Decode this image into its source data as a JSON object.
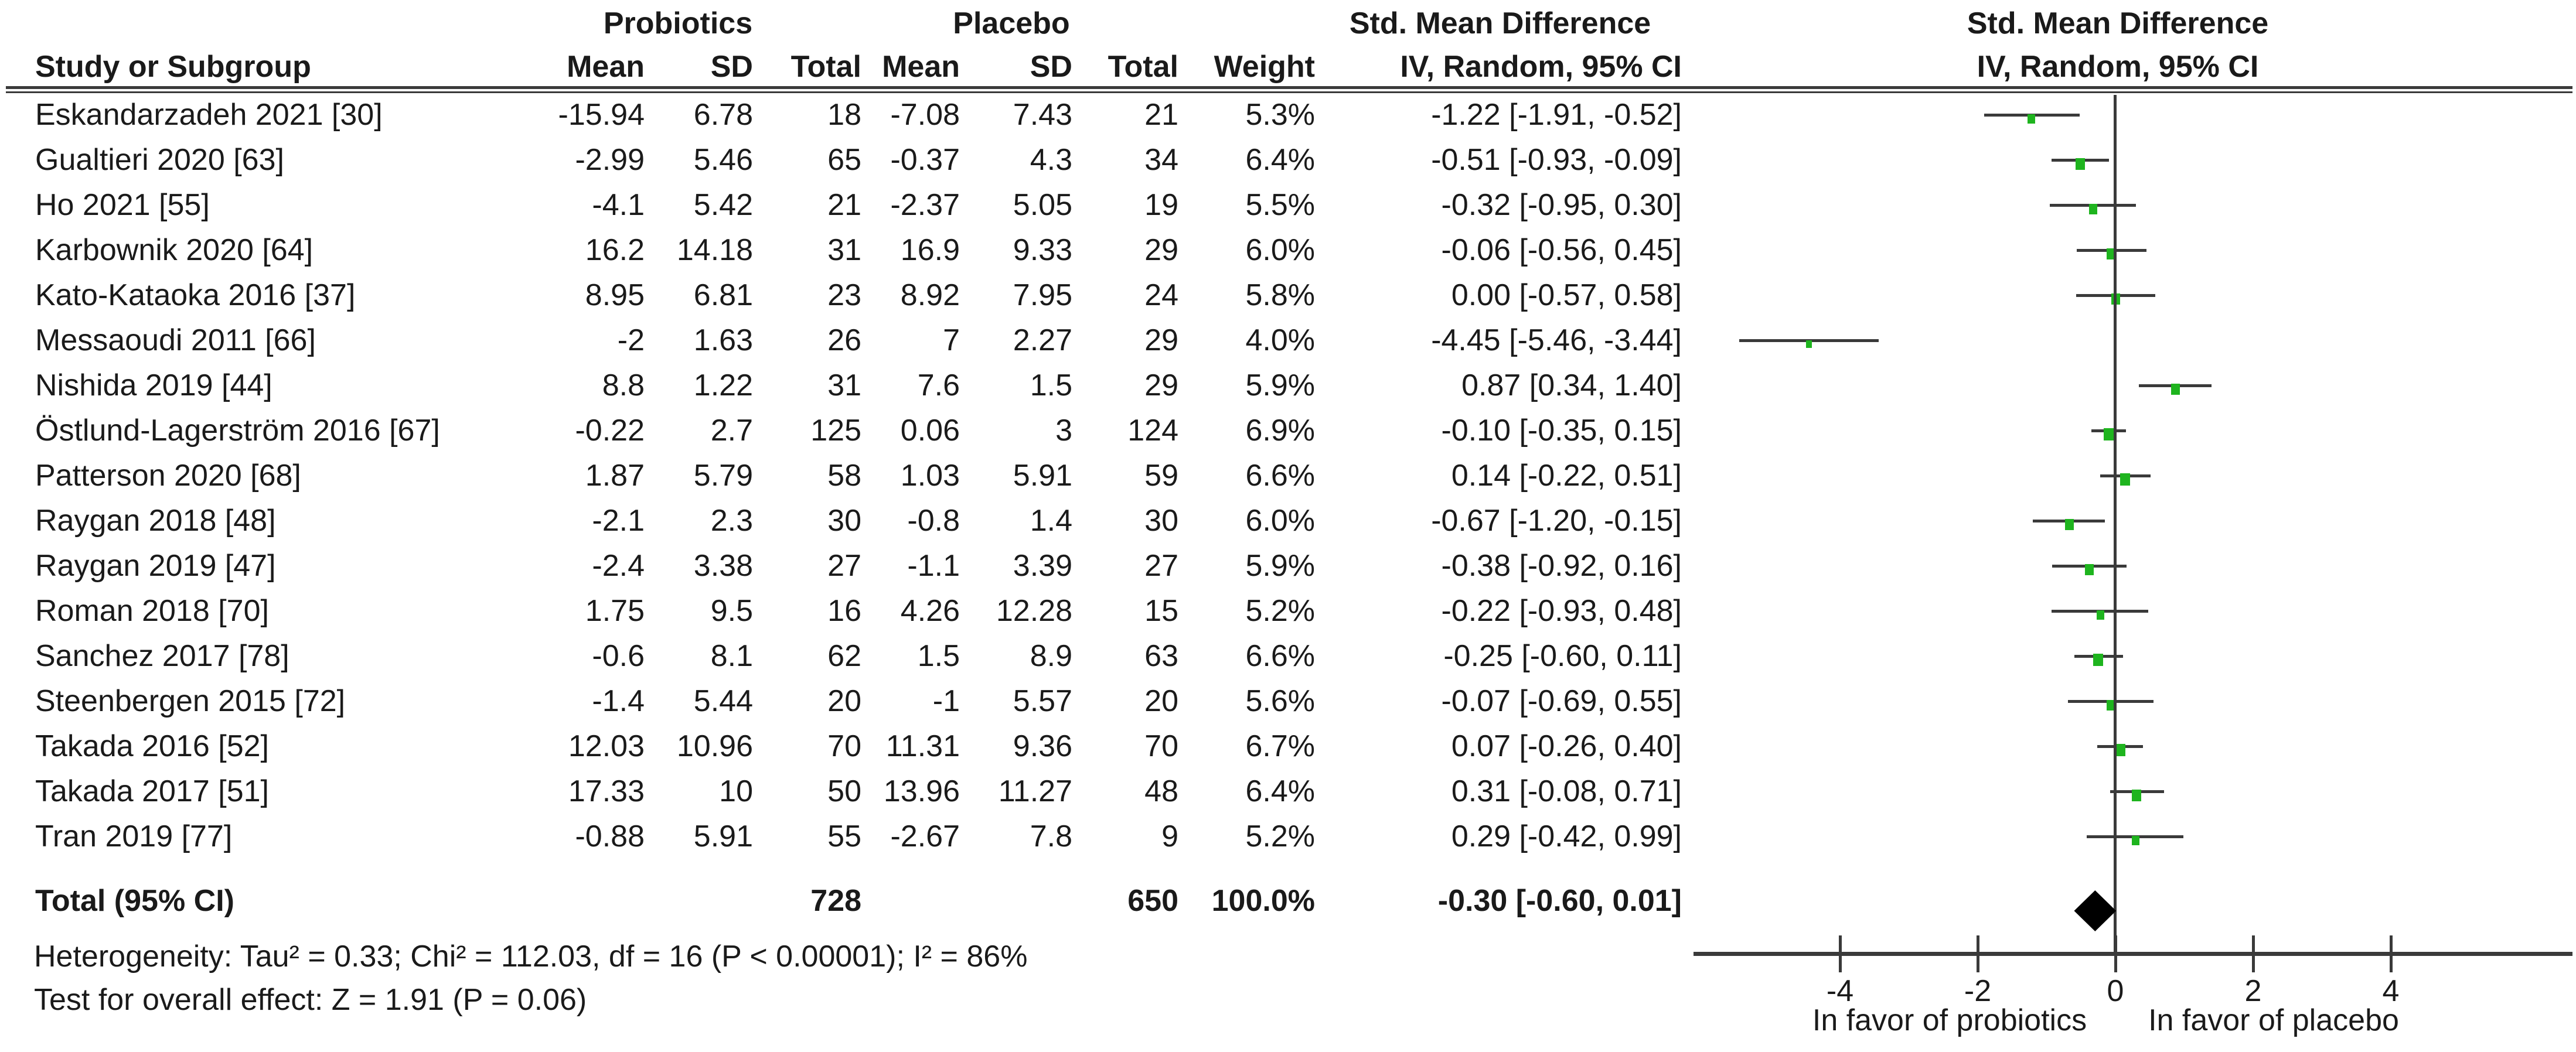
{
  "figure": {
    "headers": {
      "group_probiotics": "Probiotics",
      "group_placebo": "Placebo",
      "group_smd": "Std. Mean Difference",
      "plot_smd": "Std. Mean Difference",
      "study": "Study or Subgroup",
      "mean": "Mean",
      "sd": "SD",
      "total": "Total",
      "weight": "Weight",
      "iv_random": "IV, Random, 95% CI",
      "plot_iv_random": "IV, Random, 95% CI"
    }
  },
  "chart_data": {
    "type": "forest",
    "effect_measure": "Std. Mean Difference",
    "model": "IV, Random, 95% CI",
    "colors": {
      "marker": "#1eb41e",
      "line": "#3a3a3a",
      "diamond": "#000000"
    },
    "axis": {
      "ticks": [
        -4,
        -2,
        0,
        2,
        4
      ],
      "tick_labels": [
        "-4",
        "-2",
        "0",
        "2",
        "4"
      ],
      "xmin": -6.1,
      "xmax": 6.6,
      "left_label": "In favor of probiotics",
      "right_label": "In favor of placebo"
    },
    "studies": [
      {
        "name": "Eskandarzadeh 2021 [30]",
        "mean1": "-15.94",
        "sd1": "6.78",
        "total1": "18",
        "mean2": "-7.08",
        "sd2": "7.43",
        "total2": "21",
        "weight": "5.3%",
        "ci": "-1.22 [-1.91, -0.52]",
        "est": -1.22,
        "lo": -1.91,
        "hi": -0.52
      },
      {
        "name": "Gualtieri 2020 [63]",
        "mean1": "-2.99",
        "sd1": "5.46",
        "total1": "65",
        "mean2": "-0.37",
        "sd2": "4.3",
        "total2": "34",
        "weight": "6.4%",
        "ci": "-0.51 [-0.93, -0.09]",
        "est": -0.51,
        "lo": -0.93,
        "hi": -0.09
      },
      {
        "name": "Ho 2021 [55]",
        "mean1": "-4.1",
        "sd1": "5.42",
        "total1": "21",
        "mean2": "-2.37",
        "sd2": "5.05",
        "total2": "19",
        "weight": "5.5%",
        "ci": "-0.32 [-0.95, 0.30]",
        "est": -0.32,
        "lo": -0.95,
        "hi": 0.3
      },
      {
        "name": "Karbownik 2020 [64]",
        "mean1": "16.2",
        "sd1": "14.18",
        "total1": "31",
        "mean2": "16.9",
        "sd2": "9.33",
        "total2": "29",
        "weight": "6.0%",
        "ci": "-0.06 [-0.56, 0.45]",
        "est": -0.06,
        "lo": -0.56,
        "hi": 0.45
      },
      {
        "name": "Kato-Kataoka 2016 [37]",
        "mean1": "8.95",
        "sd1": "6.81",
        "total1": "23",
        "mean2": "8.92",
        "sd2": "7.95",
        "total2": "24",
        "weight": "5.8%",
        "ci": "0.00 [-0.57, 0.58]",
        "est": 0.0,
        "lo": -0.57,
        "hi": 0.58
      },
      {
        "name": "Messaoudi 2011 [66]",
        "mean1": "-2",
        "sd1": "1.63",
        "total1": "26",
        "mean2": "7",
        "sd2": "2.27",
        "total2": "29",
        "weight": "4.0%",
        "ci": "-4.45 [-5.46, -3.44]",
        "est": -4.45,
        "lo": -5.46,
        "hi": -3.44
      },
      {
        "name": "Nishida 2019 [44]",
        "mean1": "8.8",
        "sd1": "1.22",
        "total1": "31",
        "mean2": "7.6",
        "sd2": "1.5",
        "total2": "29",
        "weight": "5.9%",
        "ci": "0.87 [0.34, 1.40]",
        "est": 0.87,
        "lo": 0.34,
        "hi": 1.4
      },
      {
        "name": "Östlund-Lagerström 2016 [67]",
        "mean1": "-0.22",
        "sd1": "2.7",
        "total1": "125",
        "mean2": "0.06",
        "sd2": "3",
        "total2": "124",
        "weight": "6.9%",
        "ci": "-0.10 [-0.35, 0.15]",
        "est": -0.1,
        "lo": -0.35,
        "hi": 0.15
      },
      {
        "name": "Patterson 2020 [68]",
        "mean1": "1.87",
        "sd1": "5.79",
        "total1": "58",
        "mean2": "1.03",
        "sd2": "5.91",
        "total2": "59",
        "weight": "6.6%",
        "ci": "0.14 [-0.22, 0.51]",
        "est": 0.14,
        "lo": -0.22,
        "hi": 0.51
      },
      {
        "name": "Raygan 2018 [48]",
        "mean1": "-2.1",
        "sd1": "2.3",
        "total1": "30",
        "mean2": "-0.8",
        "sd2": "1.4",
        "total2": "30",
        "weight": "6.0%",
        "ci": "-0.67 [-1.20, -0.15]",
        "est": -0.67,
        "lo": -1.2,
        "hi": -0.15
      },
      {
        "name": "Raygan 2019 [47]",
        "mean1": "-2.4",
        "sd1": "3.38",
        "total1": "27",
        "mean2": "-1.1",
        "sd2": "3.39",
        "total2": "27",
        "weight": "5.9%",
        "ci": "-0.38 [-0.92, 0.16]",
        "est": -0.38,
        "lo": -0.92,
        "hi": 0.16
      },
      {
        "name": "Roman 2018 [70]",
        "mean1": "1.75",
        "sd1": "9.5",
        "total1": "16",
        "mean2": "4.26",
        "sd2": "12.28",
        "total2": "15",
        "weight": "5.2%",
        "ci": "-0.22 [-0.93, 0.48]",
        "est": -0.22,
        "lo": -0.93,
        "hi": 0.48
      },
      {
        "name": "Sanchez 2017 [78]",
        "mean1": "-0.6",
        "sd1": "8.1",
        "total1": "62",
        "mean2": "1.5",
        "sd2": "8.9",
        "total2": "63",
        "weight": "6.6%",
        "ci": "-0.25 [-0.60, 0.11]",
        "est": -0.25,
        "lo": -0.6,
        "hi": 0.11
      },
      {
        "name": "Steenbergen 2015 [72]",
        "mean1": "-1.4",
        "sd1": "5.44",
        "total1": "20",
        "mean2": "-1",
        "sd2": "5.57",
        "total2": "20",
        "weight": "5.6%",
        "ci": "-0.07 [-0.69, 0.55]",
        "est": -0.07,
        "lo": -0.69,
        "hi": 0.55
      },
      {
        "name": "Takada 2016 [52]",
        "mean1": "12.03",
        "sd1": "10.96",
        "total1": "70",
        "mean2": "11.31",
        "sd2": "9.36",
        "total2": "70",
        "weight": "6.7%",
        "ci": "0.07 [-0.26, 0.40]",
        "est": 0.07,
        "lo": -0.26,
        "hi": 0.4
      },
      {
        "name": "Takada 2017 [51]",
        "mean1": "17.33",
        "sd1": "10",
        "total1": "50",
        "mean2": "13.96",
        "sd2": "11.27",
        "total2": "48",
        "weight": "6.4%",
        "ci": "0.31 [-0.08, 0.71]",
        "est": 0.31,
        "lo": -0.08,
        "hi": 0.71
      },
      {
        "name": "Tran 2019 [77]",
        "mean1": "-0.88",
        "sd1": "5.91",
        "total1": "55",
        "mean2": "-2.67",
        "sd2": "7.8",
        "total2": "9",
        "weight": "5.2%",
        "ci": "0.29 [-0.42, 0.99]",
        "est": 0.29,
        "lo": -0.42,
        "hi": 0.99
      }
    ],
    "total": {
      "label": "Total (95% CI)",
      "total1": "728",
      "total2": "650",
      "weight": "100.0%",
      "ci": "-0.30 [-0.60, 0.01]",
      "est": -0.3,
      "lo": -0.6,
      "hi": 0.01
    },
    "heterogeneity": "Heterogeneity: Tau² = 0.33; Chi² = 112.03, df = 16 (P < 0.00001); I² = 86%",
    "overall_test": "Test for overall effect: Z = 1.91 (P = 0.06)"
  }
}
